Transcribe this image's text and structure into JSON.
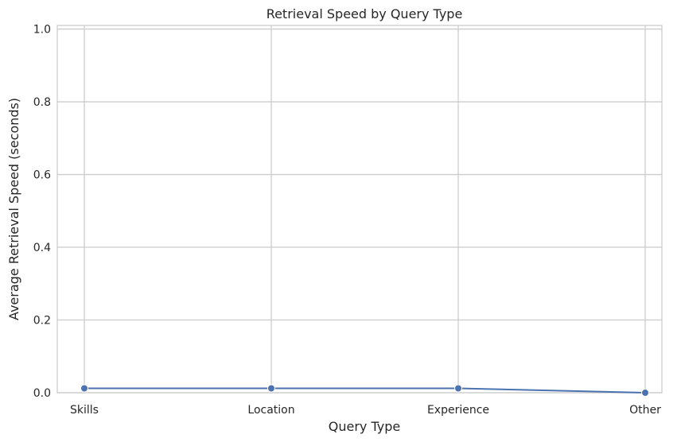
{
  "chart_data": {
    "type": "line",
    "title": "Retrieval Speed by Query Type",
    "xlabel": "Query Type",
    "ylabel": "Average Retrieval Speed (seconds)",
    "categories": [
      "Skills",
      "Location",
      "Experience",
      "Other"
    ],
    "series": [
      {
        "values": [
          0.012,
          0.012,
          0.012,
          0.0
        ],
        "color": "#4c72b0",
        "marker": "circle"
      }
    ],
    "ylim": [
      0,
      1.01
    ],
    "yticks": [
      "0.0",
      "0.2",
      "0.4",
      "0.6",
      "0.8",
      "1.0"
    ],
    "grid": true,
    "legend": "none"
  }
}
